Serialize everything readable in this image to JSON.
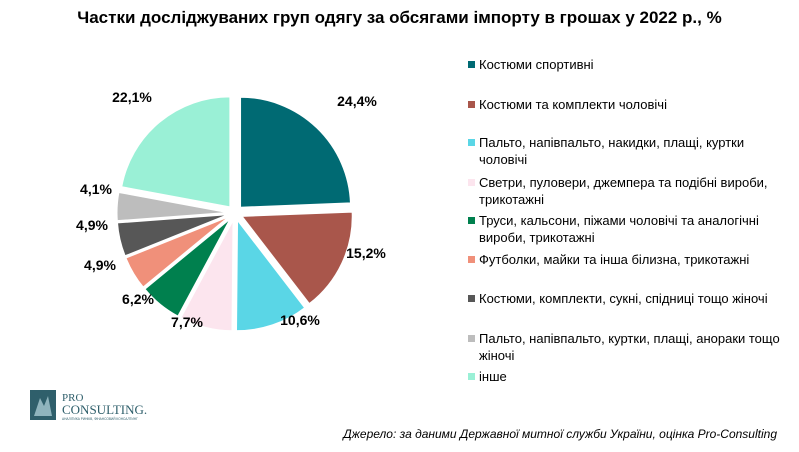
{
  "title": "Частки досліджуваних груп одягу за обсягами імпорту в грошах у 2022 р., %",
  "chart_data": {
    "type": "pie",
    "title": "Частки досліджуваних груп одягу за обсягами імпорту в грошах у 2022 р., %",
    "unit": "%",
    "legend_position": "right",
    "slices": [
      {
        "name": "Костюми спортивні",
        "value": 24.4,
        "label": "24,4%",
        "color": "#006a73"
      },
      {
        "name": "Костюми та комплекти чоловічі",
        "value": 15.2,
        "label": "15,2%",
        "color": "#a9564b"
      },
      {
        "name": "Пальто, напівпальто, накидки, плащі, куртки чоловічі",
        "value": 10.6,
        "label": "10,6%",
        "color": "#5ad6e6"
      },
      {
        "name": "Светри, пуловери, джемпера та подібні вироби, трикотажні",
        "value": 7.7,
        "label": "7,7%",
        "color": "#fce5ee"
      },
      {
        "name": "Труси, кальсони, піжами чоловічі та аналогічні вироби, трикотажні",
        "value": 6.2,
        "label": "6,2%",
        "color": "#00804e"
      },
      {
        "name": "Футболки, майки та інша білизна, трикотажні",
        "value": 4.9,
        "label": "4,9%",
        "color": "#f0907a"
      },
      {
        "name": "Костюми, комплекти, сукні, спідниці тощо жіночі",
        "value": 4.9,
        "label": "4,9%",
        "color": "#575757"
      },
      {
        "name": "Пальто, напівпальто, куртки, плащі, анораки тощо жіночі",
        "value": 4.1,
        "label": "4,1%",
        "color": "#bdbdbd"
      },
      {
        "name": "інше",
        "value": 22.1,
        "label": "22,1%",
        "color": "#9af0d6"
      }
    ]
  },
  "logo": {
    "line1": "PRO",
    "line2": "CONSULTING.",
    "tagline": "АНАЛІТИКА РИНКІВ, ФІНАНСОВИЙ КОНСАЛТИНГ"
  },
  "source": "Джерело: за даними Державної митної служби України, оцінка Pro-Consulting"
}
